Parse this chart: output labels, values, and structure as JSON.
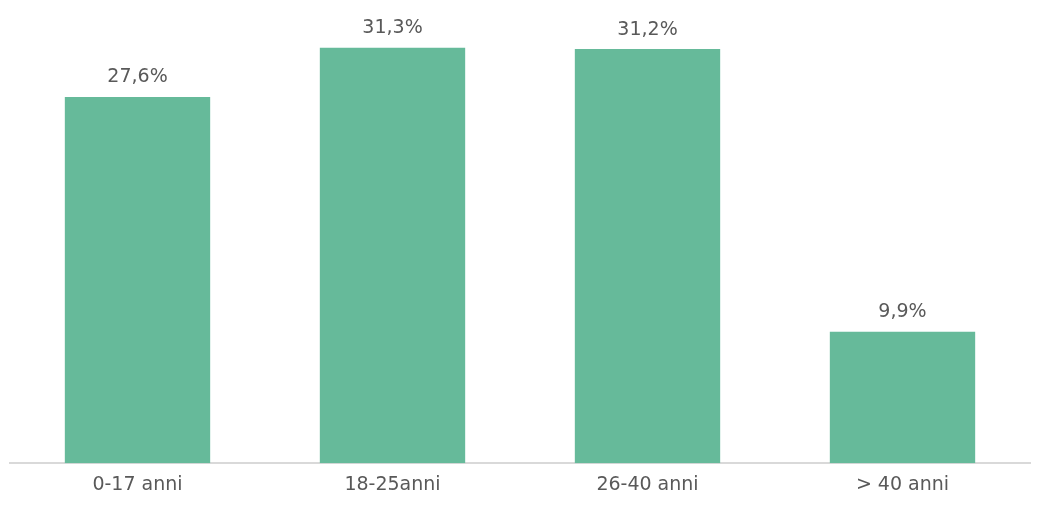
{
  "chart_data": {
    "type": "bar",
    "categories": [
      "0-17 anni",
      "18-25anni",
      "26-40 anni",
      "> 40 anni"
    ],
    "values": [
      27.6,
      31.3,
      31.2,
      9.9
    ],
    "value_labels": [
      "27,6%",
      "31,3%",
      "31,2%",
      "9,9%"
    ],
    "color": "#66ba9a",
    "grid": false,
    "legend": false
  }
}
